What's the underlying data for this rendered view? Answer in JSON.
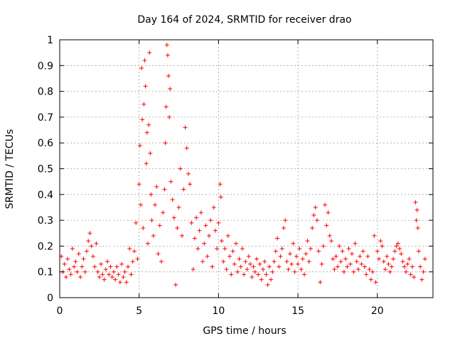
{
  "chart_data": {
    "type": "scatter",
    "title": "Day 164 of 2024, SRMTID for receiver drao",
    "xlabel": "GPS time / hours",
    "ylabel": "SRMTID / TECUs",
    "xlim": [
      0,
      23.5
    ],
    "ylim": [
      0,
      1
    ],
    "x_ticks": [
      0,
      5,
      10,
      15,
      20
    ],
    "x_tick_labels": [
      "0",
      "5",
      "10",
      "15",
      "20"
    ],
    "y_ticks": [
      0,
      0.1,
      0.2,
      0.3,
      0.4,
      0.5,
      0.6,
      0.7,
      0.8,
      0.9,
      1.0
    ],
    "y_tick_labels": [
      "0",
      "0.1",
      "0.2",
      "0.3",
      "0.4",
      "0.5",
      "0.6",
      "0.7",
      "0.8",
      "0.9",
      "1"
    ],
    "grid": true,
    "marker": "+",
    "series": [
      {
        "name": "SRMTID",
        "color": "#ff0000",
        "points": [
          [
            0.1,
            0.16
          ],
          [
            0.2,
            0.1
          ],
          [
            0.3,
            0.13
          ],
          [
            0.4,
            0.08
          ],
          [
            0.5,
            0.15
          ],
          [
            0.6,
            0.11
          ],
          [
            0.7,
            0.09
          ],
          [
            0.8,
            0.19
          ],
          [
            0.9,
            0.12
          ],
          [
            1.0,
            0.14
          ],
          [
            1.1,
            0.1
          ],
          [
            1.2,
            0.17
          ],
          [
            1.3,
            0.08
          ],
          [
            1.4,
            0.12
          ],
          [
            1.5,
            0.15
          ],
          [
            1.6,
            0.1
          ],
          [
            1.7,
            0.18
          ],
          [
            1.8,
            0.22
          ],
          [
            1.9,
            0.25
          ],
          [
            2.0,
            0.2
          ],
          [
            2.1,
            0.16
          ],
          [
            2.2,
            0.12
          ],
          [
            2.3,
            0.21
          ],
          [
            2.4,
            0.1
          ],
          [
            2.5,
            0.08
          ],
          [
            2.6,
            0.13
          ],
          [
            2.7,
            0.09
          ],
          [
            2.8,
            0.07
          ],
          [
            2.9,
            0.11
          ],
          [
            3.0,
            0.14
          ],
          [
            3.1,
            0.09
          ],
          [
            3.2,
            0.12
          ],
          [
            3.3,
            0.08
          ],
          [
            3.4,
            0.1
          ],
          [
            3.5,
            0.07
          ],
          [
            3.6,
            0.12
          ],
          [
            3.7,
            0.09
          ],
          [
            3.8,
            0.06
          ],
          [
            3.9,
            0.13
          ],
          [
            4.0,
            0.08
          ],
          [
            4.1,
            0.1
          ],
          [
            4.2,
            0.06
          ],
          [
            4.3,
            0.12
          ],
          [
            4.4,
            0.19
          ],
          [
            4.5,
            0.09
          ],
          [
            4.6,
            0.14
          ],
          [
            4.7,
            0.18
          ],
          [
            4.8,
            0.29
          ],
          [
            4.9,
            0.15
          ],
          [
            5.0,
            0.44
          ],
          [
            5.05,
            0.59
          ],
          [
            5.1,
            0.36
          ],
          [
            5.15,
            0.89
          ],
          [
            5.2,
            0.69
          ],
          [
            5.25,
            0.27
          ],
          [
            5.3,
            0.75
          ],
          [
            5.35,
            0.92
          ],
          [
            5.4,
            0.82
          ],
          [
            5.45,
            0.52
          ],
          [
            5.5,
            0.64
          ],
          [
            5.55,
            0.21
          ],
          [
            5.6,
            0.67
          ],
          [
            5.65,
            0.95
          ],
          [
            5.7,
            0.56
          ],
          [
            5.75,
            0.4
          ],
          [
            5.8,
            0.3
          ],
          [
            5.9,
            0.24
          ],
          [
            6.0,
            0.36
          ],
          [
            6.1,
            0.43
          ],
          [
            6.2,
            0.17
          ],
          [
            6.3,
            0.28
          ],
          [
            6.4,
            0.14
          ],
          [
            6.5,
            0.33
          ],
          [
            6.6,
            0.42
          ],
          [
            6.65,
            0.6
          ],
          [
            6.7,
            0.74
          ],
          [
            6.75,
            0.98
          ],
          [
            6.8,
            0.94
          ],
          [
            6.85,
            0.86
          ],
          [
            6.9,
            0.7
          ],
          [
            6.95,
            0.81
          ],
          [
            7.0,
            0.45
          ],
          [
            7.1,
            0.38
          ],
          [
            7.2,
            0.31
          ],
          [
            7.3,
            0.05
          ],
          [
            7.4,
            0.27
          ],
          [
            7.5,
            0.35
          ],
          [
            7.6,
            0.5
          ],
          [
            7.7,
            0.24
          ],
          [
            7.8,
            0.42
          ],
          [
            7.9,
            0.66
          ],
          [
            8.0,
            0.58
          ],
          [
            8.1,
            0.48
          ],
          [
            8.2,
            0.44
          ],
          [
            8.3,
            0.29
          ],
          [
            8.4,
            0.11
          ],
          [
            8.5,
            0.23
          ],
          [
            8.6,
            0.31
          ],
          [
            8.7,
            0.19
          ],
          [
            8.8,
            0.26
          ],
          [
            8.9,
            0.33
          ],
          [
            9.0,
            0.14
          ],
          [
            9.1,
            0.21
          ],
          [
            9.2,
            0.28
          ],
          [
            9.3,
            0.16
          ],
          [
            9.4,
            0.24
          ],
          [
            9.5,
            0.3
          ],
          [
            9.6,
            0.12
          ],
          [
            9.7,
            0.35
          ],
          [
            9.8,
            0.26
          ],
          [
            9.9,
            0.19
          ],
          [
            10.0,
            0.29
          ],
          [
            10.1,
            0.44
          ],
          [
            10.15,
            0.39
          ],
          [
            10.2,
            0.22
          ],
          [
            10.3,
            0.14
          ],
          [
            10.4,
            0.19
          ],
          [
            10.5,
            0.11
          ],
          [
            10.6,
            0.24
          ],
          [
            10.7,
            0.16
          ],
          [
            10.8,
            0.09
          ],
          [
            10.9,
            0.18
          ],
          [
            11.0,
            0.13
          ],
          [
            11.1,
            0.21
          ],
          [
            11.2,
            0.1
          ],
          [
            11.3,
            0.15
          ],
          [
            11.4,
            0.12
          ],
          [
            11.5,
            0.19
          ],
          [
            11.6,
            0.09
          ],
          [
            11.7,
            0.14
          ],
          [
            11.8,
            0.11
          ],
          [
            11.9,
            0.16
          ],
          [
            12.0,
            0.13
          ],
          [
            12.1,
            0.08
          ],
          [
            12.2,
            0.12
          ],
          [
            12.3,
            0.1
          ],
          [
            12.4,
            0.15
          ],
          [
            12.5,
            0.09
          ],
          [
            12.6,
            0.13
          ],
          [
            12.7,
            0.07
          ],
          [
            12.8,
            0.11
          ],
          [
            12.9,
            0.14
          ],
          [
            13.0,
            0.09
          ],
          [
            13.1,
            0.05
          ],
          [
            13.2,
            0.12
          ],
          [
            13.3,
            0.07
          ],
          [
            13.4,
            0.1
          ],
          [
            13.5,
            0.14
          ],
          [
            13.6,
            0.18
          ],
          [
            13.7,
            0.23
          ],
          [
            13.8,
            0.12
          ],
          [
            13.9,
            0.16
          ],
          [
            14.0,
            0.19
          ],
          [
            14.1,
            0.27
          ],
          [
            14.2,
            0.3
          ],
          [
            14.3,
            0.14
          ],
          [
            14.4,
            0.11
          ],
          [
            14.5,
            0.17
          ],
          [
            14.6,
            0.13
          ],
          [
            14.7,
            0.21
          ],
          [
            14.8,
            0.1
          ],
          [
            14.9,
            0.16
          ],
          [
            15.0,
            0.13
          ],
          [
            15.1,
            0.19
          ],
          [
            15.2,
            0.11
          ],
          [
            15.3,
            0.15
          ],
          [
            15.4,
            0.09
          ],
          [
            15.5,
            0.17
          ],
          [
            15.6,
            0.22
          ],
          [
            15.7,
            0.14
          ],
          [
            15.8,
            0.19
          ],
          [
            15.9,
            0.27
          ],
          [
            16.0,
            0.32
          ],
          [
            16.1,
            0.35
          ],
          [
            16.2,
            0.3
          ],
          [
            16.3,
            0.18
          ],
          [
            16.4,
            0.06
          ],
          [
            16.5,
            0.13
          ],
          [
            16.6,
            0.2
          ],
          [
            16.7,
            0.36
          ],
          [
            16.8,
            0.28
          ],
          [
            16.9,
            0.33
          ],
          [
            17.0,
            0.24
          ],
          [
            17.1,
            0.22
          ],
          [
            17.2,
            0.15
          ],
          [
            17.3,
            0.11
          ],
          [
            17.4,
            0.16
          ],
          [
            17.5,
            0.12
          ],
          [
            17.6,
            0.2
          ],
          [
            17.7,
            0.14
          ],
          [
            17.8,
            0.18
          ],
          [
            17.9,
            0.1
          ],
          [
            18.0,
            0.15
          ],
          [
            18.1,
            0.12
          ],
          [
            18.2,
            0.19
          ],
          [
            18.3,
            0.13
          ],
          [
            18.4,
            0.17
          ],
          [
            18.5,
            0.1
          ],
          [
            18.6,
            0.21
          ],
          [
            18.7,
            0.14
          ],
          [
            18.8,
            0.11
          ],
          [
            18.9,
            0.16
          ],
          [
            19.0,
            0.13
          ],
          [
            19.1,
            0.18
          ],
          [
            19.2,
            0.12
          ],
          [
            19.3,
            0.09
          ],
          [
            19.4,
            0.16
          ],
          [
            19.5,
            0.11
          ],
          [
            19.6,
            0.07
          ],
          [
            19.7,
            0.1
          ],
          [
            19.8,
            0.24
          ],
          [
            19.9,
            0.06
          ],
          [
            20.0,
            0.18
          ],
          [
            20.1,
            0.15
          ],
          [
            20.2,
            0.22
          ],
          [
            20.3,
            0.2
          ],
          [
            20.4,
            0.14
          ],
          [
            20.5,
            0.11
          ],
          [
            20.6,
            0.16
          ],
          [
            20.7,
            0.13
          ],
          [
            20.8,
            0.1
          ],
          [
            20.9,
            0.12
          ],
          [
            21.0,
            0.15
          ],
          [
            21.1,
            0.18
          ],
          [
            21.2,
            0.2
          ],
          [
            21.3,
            0.21
          ],
          [
            21.4,
            0.19
          ],
          [
            21.5,
            0.17
          ],
          [
            21.6,
            0.14
          ],
          [
            21.7,
            0.12
          ],
          [
            21.8,
            0.1
          ],
          [
            21.9,
            0.13
          ],
          [
            22.0,
            0.15
          ],
          [
            22.1,
            0.09
          ],
          [
            22.2,
            0.12
          ],
          [
            22.3,
            0.08
          ],
          [
            22.4,
            0.37
          ],
          [
            22.45,
            0.3
          ],
          [
            22.5,
            0.34
          ],
          [
            22.55,
            0.27
          ],
          [
            22.6,
            0.18
          ],
          [
            22.7,
            0.12
          ],
          [
            22.8,
            0.07
          ],
          [
            22.9,
            0.1
          ],
          [
            23.0,
            0.15
          ]
        ]
      }
    ]
  }
}
